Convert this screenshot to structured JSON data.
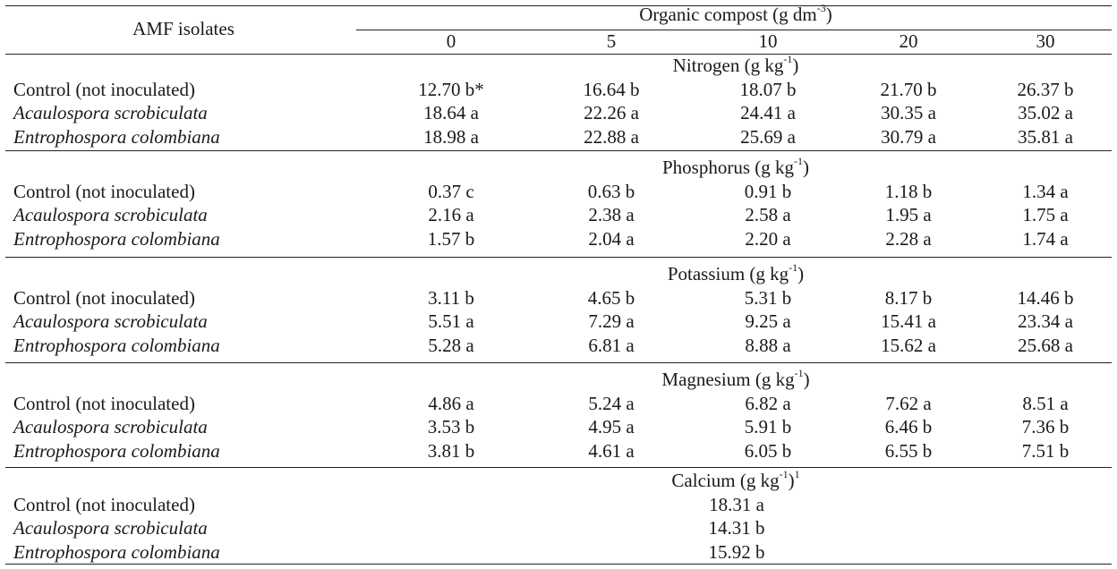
{
  "header": {
    "row_label_header": "AMF isolates",
    "column_group_title": "Organic compost (g dm",
    "column_group_unit_sup": "-3",
    "column_group_title_end": ")",
    "columns": [
      "0",
      "5",
      "10",
      "20",
      "30"
    ]
  },
  "sections": [
    {
      "title": "Nitrogen (g kg",
      "title_sup": "-1",
      "title_end": ")",
      "title_footnote": "",
      "rows": [
        {
          "label": "Control (not inoculated)",
          "italic": false,
          "values": [
            "12.70 b*",
            "16.64 b",
            "18.07 b",
            "21.70 b",
            "26.37 b"
          ]
        },
        {
          "label": "Acaulospora scrobiculata",
          "italic": true,
          "values": [
            "18.64 a",
            "22.26 a",
            "24.41 a",
            "30.35 a",
            "35.02 a"
          ]
        },
        {
          "label": "Entrophospora colombiana",
          "italic": true,
          "values": [
            "18.98 a",
            "22.88 a",
            "25.69 a",
            "30.79 a",
            "35.81 a"
          ]
        }
      ]
    },
    {
      "title": "Phosphorus (g kg",
      "title_sup": "-1",
      "title_end": ")",
      "title_footnote": "",
      "rows": [
        {
          "label": "Control (not inoculated)",
          "italic": false,
          "values": [
            "0.37 c",
            "0.63 b",
            "0.91 b",
            "1.18 b",
            "1.34 a"
          ]
        },
        {
          "label": "Acaulospora scrobiculata",
          "italic": true,
          "values": [
            "2.16 a",
            "2.38 a",
            "2.58 a",
            "1.95 a",
            "1.75 a"
          ]
        },
        {
          "label": "Entrophospora colombiana",
          "italic": true,
          "values": [
            "1.57 b",
            "2.04 a",
            "2.20 a",
            "2.28 a",
            "1.74 a"
          ]
        }
      ]
    },
    {
      "title": "Potassium (g kg",
      "title_sup": "-1",
      "title_end": ")",
      "title_footnote": "",
      "rows": [
        {
          "label": "Control (not inoculated)",
          "italic": false,
          "values": [
            "3.11 b",
            "4.65 b",
            "5.31 b",
            "8.17 b",
            "14.46 b"
          ]
        },
        {
          "label": "Acaulospora scrobiculata",
          "italic": true,
          "values": [
            "5.51 a",
            "7.29 a",
            "9.25 a",
            "15.41 a",
            "23.34 a"
          ]
        },
        {
          "label": "Entrophospora colombiana",
          "italic": true,
          "values": [
            "5.28 a",
            "6.81 a",
            "8.88 a",
            "15.62 a",
            "25.68 a"
          ]
        }
      ]
    },
    {
      "title": "Magnesium (g kg",
      "title_sup": "-1",
      "title_end": ")",
      "title_footnote": "",
      "rows": [
        {
          "label": "Control (not inoculated)",
          "italic": false,
          "values": [
            "4.86 a",
            "5.24 a",
            "6.82 a",
            "7.62 a",
            "8.51 a"
          ]
        },
        {
          "label": "Acaulospora scrobiculata",
          "italic": true,
          "values": [
            "3.53 b",
            "4.95 a",
            "5.91 b",
            "6.46 b",
            "7.36 b"
          ]
        },
        {
          "label": "Entrophospora colombiana",
          "italic": true,
          "values": [
            "3.81 b",
            "4.61 a",
            "6.05 b",
            "6.55 b",
            "7.51 b"
          ]
        }
      ]
    },
    {
      "title": "Calcium (g kg",
      "title_sup": "-1",
      "title_end": ")",
      "title_footnote": "1",
      "single_value": true,
      "rows": [
        {
          "label": "Control (not inoculated)",
          "italic": false,
          "values": [
            "18.31 a"
          ]
        },
        {
          "label": "Acaulospora scrobiculata",
          "italic": true,
          "values": [
            "14.31 b"
          ]
        },
        {
          "label": "Entrophospora colombiana",
          "italic": true,
          "values": [
            "15.92 b"
          ]
        }
      ]
    }
  ]
}
